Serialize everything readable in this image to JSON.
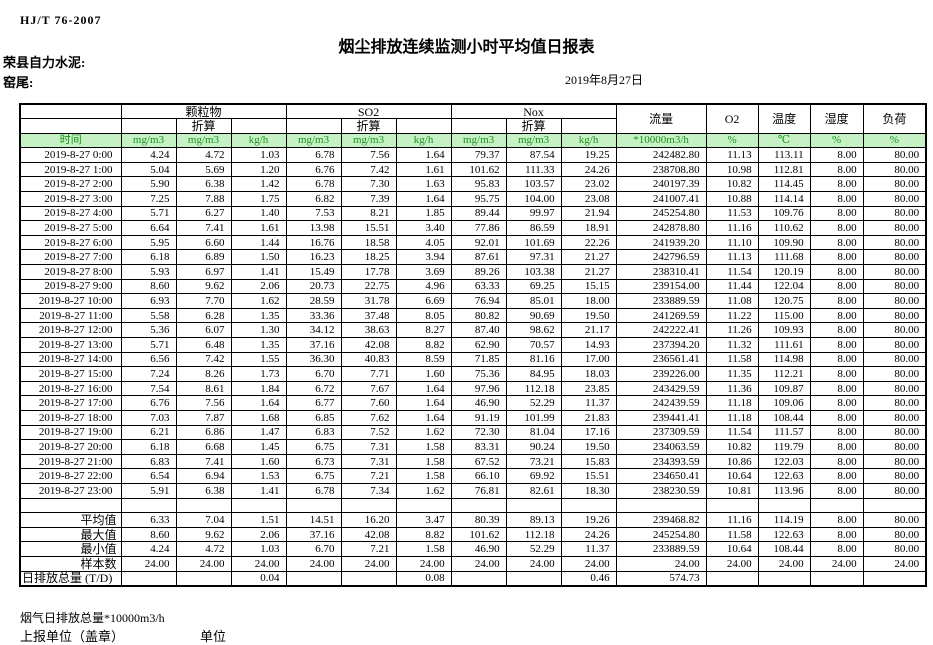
{
  "page": {
    "standard": "HJ/T 76-2007",
    "title": "烟尘排放连续监测小时平均值日报表",
    "company": "荣县自力水泥:",
    "stack": "窑尾:",
    "date": "2019年8月27日"
  },
  "colors": {
    "units_row_bg": "#c5f1c5",
    "units_row_text": "#1e941e",
    "border": "#000000"
  },
  "table": {
    "groups": {
      "pm": "颗粒物",
      "so2": "SO2",
      "nox": "Nox",
      "flow": "流量",
      "o2": "O2",
      "temp": "温度",
      "humidity": "湿度",
      "load": "负荷"
    },
    "converted_label": "折算",
    "units_row": [
      "时间",
      "mg/m3",
      "mg/m3",
      "kg/h",
      "mg/m3",
      "mg/m3",
      "kg/h",
      "mg/m3",
      "mg/m3",
      "kg/h",
      "*10000m3/h",
      "%",
      "℃",
      "%",
      "%"
    ],
    "rows": [
      {
        "time": "2019-8-27 0:00",
        "values": [
          "4.24",
          "4.72",
          "1.03",
          "6.78",
          "7.56",
          "1.64",
          "79.37",
          "87.54",
          "19.25",
          "242482.80",
          "11.13",
          "113.11",
          "8.00",
          "80.00"
        ]
      },
      {
        "time": "2019-8-27 1:00",
        "values": [
          "5.04",
          "5.69",
          "1.20",
          "6.76",
          "7.42",
          "1.61",
          "101.62",
          "111.33",
          "24.26",
          "238708.80",
          "10.98",
          "112.81",
          "8.00",
          "80.00"
        ]
      },
      {
        "time": "2019-8-27 2:00",
        "values": [
          "5.90",
          "6.38",
          "1.42",
          "6.78",
          "7.30",
          "1.63",
          "95.83",
          "103.57",
          "23.02",
          "240197.39",
          "10.82",
          "114.45",
          "8.00",
          "80.00"
        ]
      },
      {
        "time": "2019-8-27 3:00",
        "values": [
          "7.25",
          "7.88",
          "1.75",
          "6.82",
          "7.39",
          "1.64",
          "95.75",
          "104.00",
          "23.08",
          "241007.41",
          "10.88",
          "114.14",
          "8.00",
          "80.00"
        ]
      },
      {
        "time": "2019-8-27 4:00",
        "values": [
          "5.71",
          "6.27",
          "1.40",
          "7.53",
          "8.21",
          "1.85",
          "89.44",
          "99.97",
          "21.94",
          "245254.80",
          "11.53",
          "109.76",
          "8.00",
          "80.00"
        ]
      },
      {
        "time": "2019-8-27 5:00",
        "values": [
          "6.64",
          "7.41",
          "1.61",
          "13.98",
          "15.51",
          "3.40",
          "77.86",
          "86.59",
          "18.91",
          "242878.80",
          "11.16",
          "110.62",
          "8.00",
          "80.00"
        ]
      },
      {
        "time": "2019-8-27 6:00",
        "values": [
          "5.95",
          "6.60",
          "1.44",
          "16.76",
          "18.58",
          "4.05",
          "92.01",
          "101.69",
          "22.26",
          "241939.20",
          "11.10",
          "109.90",
          "8.00",
          "80.00"
        ]
      },
      {
        "time": "2019-8-27 7:00",
        "values": [
          "6.18",
          "6.89",
          "1.50",
          "16.23",
          "18.25",
          "3.94",
          "87.61",
          "97.31",
          "21.27",
          "242796.59",
          "11.13",
          "111.68",
          "8.00",
          "80.00"
        ]
      },
      {
        "time": "2019-8-27 8:00",
        "values": [
          "5.93",
          "6.97",
          "1.41",
          "15.49",
          "17.78",
          "3.69",
          "89.26",
          "103.38",
          "21.27",
          "238310.41",
          "11.54",
          "120.19",
          "8.00",
          "80.00"
        ]
      },
      {
        "time": "2019-8-27 9:00",
        "values": [
          "8.60",
          "9.62",
          "2.06",
          "20.73",
          "22.75",
          "4.96",
          "63.33",
          "69.25",
          "15.15",
          "239154.00",
          "11.44",
          "122.04",
          "8.00",
          "80.00"
        ]
      },
      {
        "time": "2019-8-27 10:00",
        "values": [
          "6.93",
          "7.70",
          "1.62",
          "28.59",
          "31.78",
          "6.69",
          "76.94",
          "85.01",
          "18.00",
          "233889.59",
          "11.08",
          "120.75",
          "8.00",
          "80.00"
        ]
      },
      {
        "time": "2019-8-27 11:00",
        "values": [
          "5.58",
          "6.28",
          "1.35",
          "33.36",
          "37.48",
          "8.05",
          "80.82",
          "90.69",
          "19.50",
          "241269.59",
          "11.22",
          "115.00",
          "8.00",
          "80.00"
        ]
      },
      {
        "time": "2019-8-27 12:00",
        "values": [
          "5.36",
          "6.07",
          "1.30",
          "34.12",
          "38.63",
          "8.27",
          "87.40",
          "98.62",
          "21.17",
          "242222.41",
          "11.26",
          "109.93",
          "8.00",
          "80.00"
        ]
      },
      {
        "time": "2019-8-27 13:00",
        "values": [
          "5.71",
          "6.48",
          "1.35",
          "37.16",
          "42.08",
          "8.82",
          "62.90",
          "70.57",
          "14.93",
          "237394.20",
          "11.32",
          "111.61",
          "8.00",
          "80.00"
        ]
      },
      {
        "time": "2019-8-27 14:00",
        "values": [
          "6.56",
          "7.42",
          "1.55",
          "36.30",
          "40.83",
          "8.59",
          "71.85",
          "81.16",
          "17.00",
          "236561.41",
          "11.58",
          "114.98",
          "8.00",
          "80.00"
        ]
      },
      {
        "time": "2019-8-27 15:00",
        "values": [
          "7.24",
          "8.26",
          "1.73",
          "6.70",
          "7.71",
          "1.60",
          "75.36",
          "84.95",
          "18.03",
          "239226.00",
          "11.35",
          "112.21",
          "8.00",
          "80.00"
        ]
      },
      {
        "time": "2019-8-27 16:00",
        "values": [
          "7.54",
          "8.61",
          "1.84",
          "6.72",
          "7.67",
          "1.64",
          "97.96",
          "112.18",
          "23.85",
          "243429.59",
          "11.36",
          "109.87",
          "8.00",
          "80.00"
        ]
      },
      {
        "time": "2019-8-27 17:00",
        "values": [
          "6.76",
          "7.56",
          "1.64",
          "6.77",
          "7.60",
          "1.64",
          "46.90",
          "52.29",
          "11.37",
          "242439.59",
          "11.18",
          "109.06",
          "8.00",
          "80.00"
        ]
      },
      {
        "time": "2019-8-27 18:00",
        "values": [
          "7.03",
          "7.87",
          "1.68",
          "6.85",
          "7.62",
          "1.64",
          "91.19",
          "101.99",
          "21.83",
          "239441.41",
          "11.18",
          "108.44",
          "8.00",
          "80.00"
        ]
      },
      {
        "time": "2019-8-27 19:00",
        "values": [
          "6.21",
          "6.86",
          "1.47",
          "6.83",
          "7.52",
          "1.62",
          "72.30",
          "81.04",
          "17.16",
          "237309.59",
          "11.54",
          "111.57",
          "8.00",
          "80.00"
        ]
      },
      {
        "time": "2019-8-27 20:00",
        "values": [
          "6.18",
          "6.68",
          "1.45",
          "6.75",
          "7.31",
          "1.58",
          "83.31",
          "90.24",
          "19.50",
          "234063.59",
          "10.82",
          "119.79",
          "8.00",
          "80.00"
        ]
      },
      {
        "time": "2019-8-27 21:00",
        "values": [
          "6.83",
          "7.41",
          "1.60",
          "6.73",
          "7.31",
          "1.58",
          "67.52",
          "73.21",
          "15.83",
          "234393.59",
          "10.86",
          "122.03",
          "8.00",
          "80.00"
        ]
      },
      {
        "time": "2019-8-27 22:00",
        "values": [
          "6.54",
          "6.94",
          "1.53",
          "6.75",
          "7.21",
          "1.58",
          "66.10",
          "69.92",
          "15.51",
          "234650.41",
          "10.64",
          "122.63",
          "8.00",
          "80.00"
        ]
      },
      {
        "time": "2019-8-27 23:00",
        "values": [
          "5.91",
          "6.38",
          "1.41",
          "6.78",
          "7.34",
          "1.62",
          "76.81",
          "82.61",
          "18.30",
          "238230.59",
          "10.81",
          "113.96",
          "8.00",
          "80.00"
        ]
      }
    ],
    "summary": [
      {
        "label": "",
        "kind": "spacer",
        "values": [
          "",
          "",
          "",
          "",
          "",
          "",
          "",
          "",
          "",
          "",
          "",
          "",
          "",
          ""
        ]
      },
      {
        "label": "平均值",
        "kind": "stat",
        "values": [
          "6.33",
          "7.04",
          "1.51",
          "14.51",
          "16.20",
          "3.47",
          "80.39",
          "89.13",
          "19.26",
          "239468.82",
          "11.16",
          "114.19",
          "8.00",
          "80.00"
        ]
      },
      {
        "label": "最大值",
        "kind": "stat",
        "values": [
          "8.60",
          "9.62",
          "2.06",
          "37.16",
          "42.08",
          "8.82",
          "101.62",
          "112.18",
          "24.26",
          "245254.80",
          "11.58",
          "122.63",
          "8.00",
          "80.00"
        ]
      },
      {
        "label": "最小值",
        "kind": "stat",
        "values": [
          "4.24",
          "4.72",
          "1.03",
          "6.70",
          "7.21",
          "1.58",
          "46.90",
          "52.29",
          "11.37",
          "233889.59",
          "10.64",
          "108.44",
          "8.00",
          "80.00"
        ]
      },
      {
        "label": "样本数",
        "kind": "stat",
        "values": [
          "24.00",
          "24.00",
          "24.00",
          "24.00",
          "24.00",
          "24.00",
          "24.00",
          "24.00",
          "24.00",
          "24.00",
          "24.00",
          "24.00",
          "24.00",
          "24.00"
        ]
      },
      {
        "label": "日排放总量 (T/D)",
        "kind": "total",
        "values": [
          "",
          "",
          "0.04",
          "",
          "",
          "0.08",
          "",
          "",
          "0.46",
          "574.73",
          "",
          "",
          "",
          ""
        ]
      }
    ]
  },
  "footer": {
    "flue_gas_note": "烟气日排放总量*10000m3/h",
    "reporting_unit": "上报单位（盖章）",
    "unit_label": "单位"
  }
}
